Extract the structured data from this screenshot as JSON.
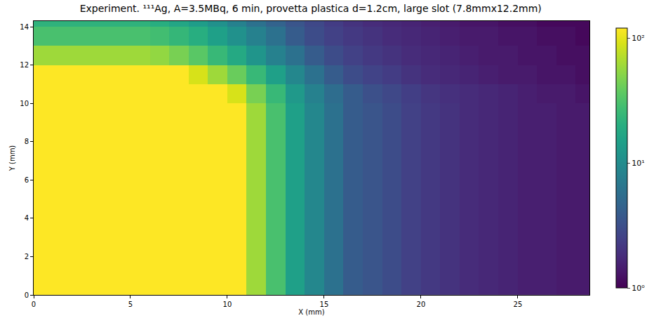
{
  "chart_data": {
    "type": "heatmap",
    "title": "Experiment. ¹¹¹Ag, A=3.5MBq, 6 min, provetta plastica d=1.2cm, large slot (7.8mmx12.2mm)",
    "x_label": "X (mm)",
    "y_label": "Y (mm)",
    "xlim": [
      0,
      28.7
    ],
    "ylim": [
      0,
      14.3
    ],
    "xticks": [
      0,
      5,
      10,
      15,
      20,
      25
    ],
    "yticks": [
      0,
      2,
      4,
      6,
      8,
      10,
      12,
      14
    ],
    "x_bins": [
      0,
      1,
      2,
      3,
      4,
      5,
      6,
      7,
      8,
      9,
      10,
      11,
      12,
      13,
      14,
      15,
      16,
      17,
      18,
      19,
      20,
      21,
      22,
      23,
      24,
      25,
      26,
      27,
      28,
      29
    ],
    "y_bins": [
      0,
      1,
      2,
      3,
      4,
      5,
      6,
      7,
      8,
      9,
      10,
      11,
      12,
      13,
      14,
      15
    ],
    "cells": [
      [
        300,
        300,
        300,
        300,
        300,
        300,
        300,
        300,
        300,
        300,
        150,
        60,
        30,
        15,
        9,
        6,
        4,
        3.5,
        3,
        2.5,
        2.2,
        2,
        1.8,
        1.7,
        1.6,
        1.5,
        1.5,
        1.4,
        1.4
      ],
      [
        300,
        300,
        300,
        300,
        300,
        300,
        300,
        300,
        300,
        300,
        150,
        60,
        30,
        15,
        9,
        6,
        4,
        3.5,
        3,
        2.5,
        2.2,
        2,
        1.8,
        1.7,
        1.6,
        1.5,
        1.5,
        1.4,
        1.4
      ],
      [
        300,
        300,
        300,
        300,
        300,
        300,
        300,
        300,
        300,
        300,
        150,
        60,
        30,
        15,
        9,
        6,
        4,
        3.5,
        3,
        2.5,
        2.2,
        2,
        1.8,
        1.7,
        1.6,
        1.5,
        1.5,
        1.4,
        1.4
      ],
      [
        300,
        300,
        300,
        300,
        300,
        300,
        300,
        300,
        300,
        300,
        150,
        60,
        30,
        15,
        9,
        6,
        4,
        3.5,
        3,
        2.5,
        2.2,
        2,
        1.8,
        1.7,
        1.6,
        1.5,
        1.5,
        1.4,
        1.4
      ],
      [
        300,
        300,
        300,
        300,
        300,
        300,
        300,
        300,
        300,
        300,
        150,
        60,
        30,
        15,
        9,
        6,
        4,
        3.5,
        3,
        2.5,
        2.2,
        2,
        1.8,
        1.7,
        1.6,
        1.5,
        1.5,
        1.4,
        1.4
      ],
      [
        300,
        300,
        300,
        300,
        300,
        300,
        300,
        300,
        300,
        300,
        150,
        60,
        30,
        15,
        9,
        6,
        4,
        3.5,
        3,
        2.5,
        2.2,
        2,
        1.8,
        1.7,
        1.6,
        1.5,
        1.5,
        1.4,
        1.4
      ],
      [
        300,
        300,
        300,
        300,
        300,
        300,
        300,
        300,
        300,
        300,
        150,
        60,
        30,
        15,
        9,
        6,
        4,
        3.5,
        3,
        2.5,
        2.2,
        2,
        1.8,
        1.7,
        1.6,
        1.5,
        1.5,
        1.4,
        1.4
      ],
      [
        300,
        300,
        300,
        300,
        300,
        300,
        300,
        300,
        300,
        300,
        150,
        60,
        30,
        15,
        9,
        6,
        4,
        3.5,
        3,
        2.5,
        2.2,
        2,
        1.8,
        1.7,
        1.6,
        1.5,
        1.5,
        1.4,
        1.4
      ],
      [
        300,
        300,
        300,
        300,
        300,
        300,
        300,
        300,
        300,
        300,
        150,
        60,
        30,
        15,
        9,
        6,
        4,
        3.5,
        3,
        2.5,
        2.2,
        2,
        1.8,
        1.7,
        1.6,
        1.5,
        1.5,
        1.4,
        1.4
      ],
      [
        300,
        300,
        300,
        300,
        300,
        300,
        300,
        300,
        300,
        300,
        150,
        60,
        30,
        15,
        9,
        6,
        4,
        3.5,
        3,
        2.5,
        2.2,
        2,
        1.8,
        1.7,
        1.6,
        1.5,
        1.5,
        1.4,
        1.4
      ],
      [
        300,
        300,
        300,
        300,
        300,
        300,
        300,
        300,
        300,
        150,
        90,
        45,
        25,
        13,
        8,
        5.5,
        4,
        3.2,
        2.8,
        2.4,
        2.1,
        1.9,
        1.8,
        1.7,
        1.6,
        1.5,
        1.4,
        1.4,
        1.3
      ],
      [
        150,
        150,
        150,
        150,
        150,
        150,
        150,
        120,
        90,
        60,
        40,
        25,
        15,
        9,
        6,
        4,
        3,
        2.6,
        2.3,
        2,
        1.8,
        1.7,
        1.6,
        1.5,
        1.4,
        1.4,
        1.3,
        1.3,
        1.2
      ],
      [
        60,
        60,
        60,
        60,
        60,
        60,
        55,
        45,
        35,
        25,
        18,
        12,
        8,
        6,
        4,
        3,
        2.5,
        2.2,
        2,
        1.8,
        1.7,
        1.6,
        1.5,
        1.4,
        1.4,
        1.3,
        1.3,
        1.2,
        1.2
      ],
      [
        30,
        30,
        30,
        30,
        30,
        30,
        28,
        24,
        20,
        15,
        11,
        8,
        6,
        4,
        3,
        2.5,
        2.2,
        2,
        1.8,
        1.7,
        1.6,
        1.5,
        1.4,
        1.4,
        1.3,
        1.3,
        1.2,
        1.2,
        1.1
      ],
      [
        22,
        22,
        22,
        22,
        22,
        22,
        20,
        17,
        14,
        11,
        8,
        6,
        4.5,
        3.5,
        2.8,
        2.3,
        2,
        1.8,
        1.7,
        1.6,
        1.5,
        1.4,
        1.3,
        1.3,
        1.2,
        1.2,
        1.1,
        1.1,
        1.1
      ]
    ],
    "colorbar": {
      "log": true,
      "range": [
        1,
        120
      ],
      "ticks": [
        {
          "value": 1,
          "label": "10⁰"
        },
        {
          "value": 10,
          "label": "10¹"
        },
        {
          "value": 100,
          "label": "10²"
        }
      ]
    }
  }
}
